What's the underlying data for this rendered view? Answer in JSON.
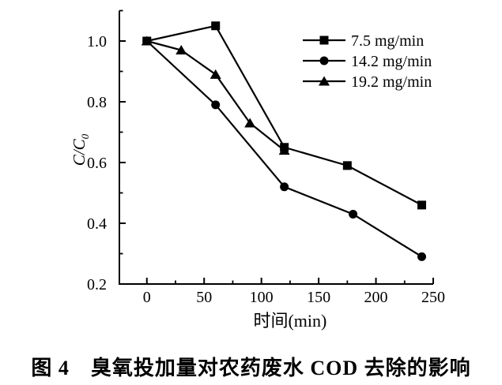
{
  "chart_data": {
    "type": "line",
    "title": "图 4　臭氧投加量对农药废水 COD 去除的影响",
    "xlabel": "时间(min)",
    "ylabel": {
      "text": "C/C",
      "sub": "0"
    },
    "xlim": [
      -24,
      250
    ],
    "ylim": [
      0.2,
      1.1
    ],
    "xticks": {
      "major": [
        0,
        50,
        100,
        150,
        200,
        250
      ],
      "labels": [
        "0",
        "50",
        "100",
        "150",
        "200",
        "250"
      ],
      "minor": [
        25,
        75,
        125,
        175,
        225
      ]
    },
    "yticks": {
      "major": [
        0.2,
        0.4,
        0.6,
        0.8,
        1.0
      ],
      "labels": [
        "0.2",
        "0.4",
        "0.6",
        "0.8",
        "1.0"
      ],
      "minor": [
        0.3,
        0.5,
        0.7,
        0.9,
        1.1
      ]
    },
    "grid": false,
    "legend_position": "top-right",
    "colors": {
      "foreground": "#000000",
      "background": "#ffffff"
    },
    "series": [
      {
        "name": "7.5 mg/min",
        "marker": "square",
        "x": [
          0,
          60,
          120,
          175,
          240
        ],
        "y": [
          1.0,
          1.05,
          0.65,
          0.59,
          0.46
        ]
      },
      {
        "name": "14.2 mg/min",
        "marker": "circle",
        "x": [
          0,
          60,
          120,
          180,
          240
        ],
        "y": [
          1.0,
          0.79,
          0.52,
          0.43,
          0.29
        ]
      },
      {
        "name": "19.2 mg/min",
        "marker": "triangle",
        "x": [
          0,
          30,
          60,
          90,
          120
        ],
        "y": [
          1.0,
          0.97,
          0.89,
          0.73,
          0.64
        ]
      }
    ]
  }
}
